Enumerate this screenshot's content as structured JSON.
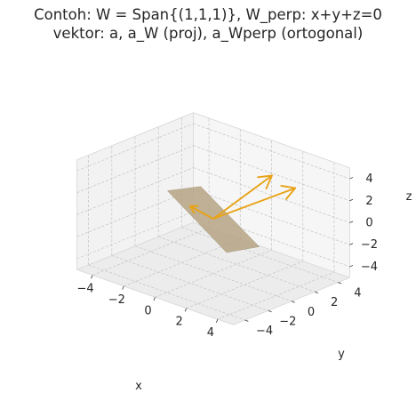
{
  "chart_data": {
    "type": "3d-vector",
    "title_line1": "Contoh: W = Span{(1,1,1)}, W_perp: x+y+z=0",
    "title_line2": "vektor: a, a_W (proj), a_Wperp (ortogonal)",
    "xlabel": "x",
    "ylabel": "y",
    "zlabel": "z",
    "xlim": [
      -5,
      5
    ],
    "ylim": [
      -5,
      5
    ],
    "zlim": [
      -5,
      5
    ],
    "x_ticks": [
      -4,
      -2,
      0,
      2,
      4
    ],
    "y_ticks": [
      -4,
      -2,
      0,
      2,
      4
    ],
    "z_ticks": [
      -4,
      -2,
      0,
      2,
      4
    ],
    "x_tick_labels": [
      "−4",
      "−2",
      "0",
      "2",
      "4"
    ],
    "y_tick_labels": [
      "−4",
      "−2",
      "0",
      "2",
      "4"
    ],
    "z_tick_labels": [
      "−4",
      "−2",
      "0",
      "2",
      "4"
    ],
    "grid": true,
    "plane": {
      "equation": "x+y+z=0",
      "color": "#b6a384"
    },
    "vectors": [
      {
        "origin": [
          0,
          0,
          0
        ],
        "components": [
          3,
          1,
          5
        ],
        "color": "#e8a317"
      },
      {
        "origin": [
          0,
          0,
          0
        ],
        "components": [
          3,
          3,
          3
        ],
        "color": "#e8a317"
      },
      {
        "origin": [
          0,
          0,
          0
        ],
        "components": [
          0,
          -2,
          2
        ],
        "color": "#e8a317"
      }
    ]
  }
}
